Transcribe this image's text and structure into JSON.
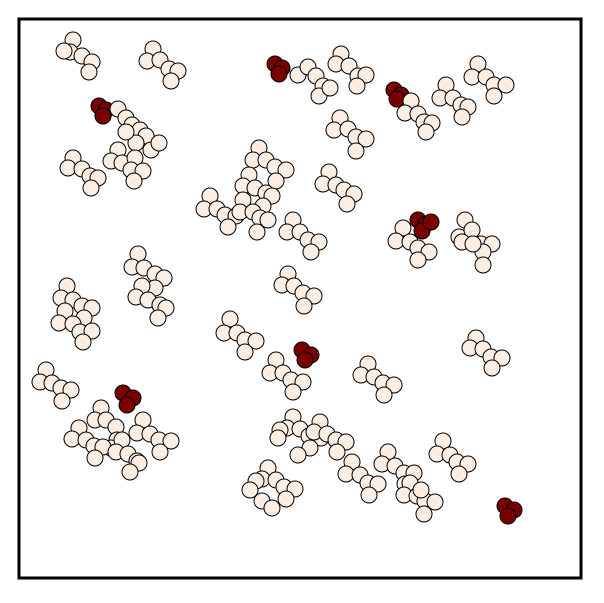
{
  "colors": {
    "background": "#ffffff",
    "border": "#000000",
    "light_agent_fill": "#fbeee4",
    "dark_agent_fill": "#7a0000",
    "outline": "#000000"
  },
  "agent_types": {
    "light": "cream-agent",
    "dark": "dark-red-agent"
  }
}
